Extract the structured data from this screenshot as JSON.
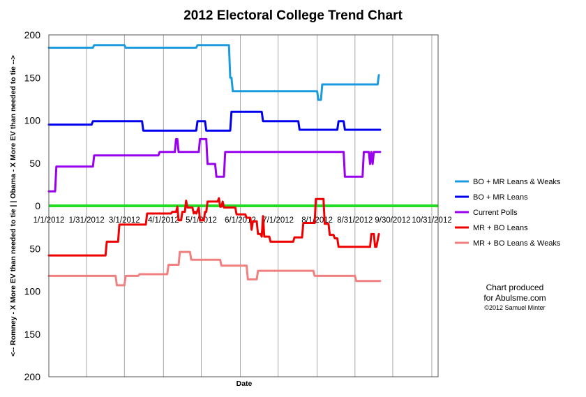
{
  "chart_data": {
    "type": "line",
    "title": "2012 Electoral College Trend Chart",
    "xlabel": "Date",
    "ylabel": "<-- Romney - X More EV than needed to tie | |  Obama - X More EV than needed to tie -->",
    "x_tick_labels": [
      "1/1/2012",
      "1/31/2012",
      "3/1/2012",
      "4/1/2012",
      "5/1/2012",
      "6/1/2012",
      "7/1/2012",
      "8/1/2012",
      "8/31/2012",
      "9/30/2012",
      "10/31/2012"
    ],
    "x_tick_days": [
      0,
      30,
      60,
      91,
      121,
      152,
      182,
      213,
      243,
      273,
      304
    ],
    "x_range_days": [
      0,
      309
    ],
    "y_tick_labels": [
      "200",
      "150",
      "100",
      "50",
      "0",
      "50",
      "100",
      "150",
      "200"
    ],
    "y_tick_values": [
      200,
      150,
      100,
      50,
      0,
      -50,
      -100,
      -150,
      -200
    ],
    "ylim": [
      -200,
      200
    ],
    "grid": "vertical",
    "legend_position": "right",
    "zero_line_color": "#22dd22",
    "series": [
      {
        "name": "BO + MR Leans & Weaks",
        "color": "#1a9be0",
        "points": [
          [
            0,
            185
          ],
          [
            35,
            185
          ],
          [
            36,
            188
          ],
          [
            60,
            188
          ],
          [
            61,
            185
          ],
          [
            117,
            185
          ],
          [
            118,
            188
          ],
          [
            143,
            188
          ],
          [
            144,
            150
          ],
          [
            145,
            150
          ],
          [
            146,
            134
          ],
          [
            213,
            134
          ],
          [
            214,
            124
          ],
          [
            216,
            124
          ],
          [
            217,
            142
          ],
          [
            261,
            142
          ],
          [
            262,
            153
          ]
        ]
      },
      {
        "name": "BO + MR Leans",
        "color": "#0000ee",
        "points": [
          [
            0,
            95
          ],
          [
            34,
            95
          ],
          [
            35,
            99
          ],
          [
            74,
            99
          ],
          [
            75,
            88
          ],
          [
            117,
            88
          ],
          [
            118,
            99
          ],
          [
            124,
            99
          ],
          [
            125,
            88
          ],
          [
            144,
            88
          ],
          [
            145,
            110
          ],
          [
            169,
            110
          ],
          [
            170,
            99
          ],
          [
            198,
            99
          ],
          [
            199,
            89
          ],
          [
            229,
            89
          ],
          [
            230,
            99
          ],
          [
            234,
            99
          ],
          [
            235,
            89
          ],
          [
            263,
            89
          ]
        ]
      },
      {
        "name": "Current Polls",
        "color": "#9900ee",
        "points": [
          [
            0,
            17
          ],
          [
            5,
            17
          ],
          [
            6,
            46
          ],
          [
            35,
            46
          ],
          [
            36,
            59
          ],
          [
            87,
            59
          ],
          [
            88,
            63
          ],
          [
            100,
            63
          ],
          [
            101,
            78
          ],
          [
            102,
            78
          ],
          [
            103,
            63
          ],
          [
            119,
            63
          ],
          [
            120,
            78
          ],
          [
            125,
            78
          ],
          [
            126,
            49
          ],
          [
            132,
            49
          ],
          [
            133,
            34
          ],
          [
            139,
            34
          ],
          [
            140,
            63
          ],
          [
            234,
            63
          ],
          [
            235,
            34
          ],
          [
            249,
            34
          ],
          [
            250,
            63
          ],
          [
            254,
            63
          ],
          [
            255,
            49
          ],
          [
            256,
            63
          ],
          [
            257,
            49
          ],
          [
            258,
            63
          ],
          [
            263,
            63
          ]
        ]
      },
      {
        "name": "MR + BO Leans",
        "color": "#ee0000",
        "points": [
          [
            0,
            -58
          ],
          [
            45,
            -58
          ],
          [
            46,
            -42
          ],
          [
            55,
            -42
          ],
          [
            56,
            -22
          ],
          [
            77,
            -22
          ],
          [
            78,
            -9
          ],
          [
            97,
            -9
          ],
          [
            98,
            -7
          ],
          [
            101,
            -7
          ],
          [
            102,
            -1
          ],
          [
            103,
            -17
          ],
          [
            105,
            -17
          ],
          [
            106,
            -7
          ],
          [
            108,
            -7
          ],
          [
            109,
            6
          ],
          [
            110,
            -2
          ],
          [
            114,
            -2
          ],
          [
            115,
            -9
          ],
          [
            116,
            -7
          ],
          [
            117,
            -9
          ],
          [
            119,
            -2
          ],
          [
            120,
            -17
          ],
          [
            123,
            -17
          ],
          [
            124,
            -7
          ],
          [
            125,
            -7
          ],
          [
            126,
            5
          ],
          [
            134,
            5
          ],
          [
            135,
            9
          ],
          [
            136,
            -1
          ],
          [
            137,
            -1
          ],
          [
            138,
            5
          ],
          [
            139,
            -2
          ],
          [
            148,
            -2
          ],
          [
            149,
            -10
          ],
          [
            156,
            -10
          ],
          [
            157,
            -14
          ],
          [
            160,
            -14
          ],
          [
            161,
            -28
          ],
          [
            162,
            -18
          ],
          [
            165,
            -18
          ],
          [
            166,
            -33
          ],
          [
            168,
            -33
          ],
          [
            169,
            -36
          ],
          [
            170,
            -12
          ],
          [
            171,
            -36
          ],
          [
            175,
            -36
          ],
          [
            176,
            -42
          ],
          [
            194,
            -42
          ],
          [
            195,
            -37
          ],
          [
            201,
            -37
          ],
          [
            202,
            -20
          ],
          [
            211,
            -20
          ],
          [
            212,
            8
          ],
          [
            218,
            8
          ],
          [
            219,
            -21
          ],
          [
            222,
            -21
          ],
          [
            223,
            -34
          ],
          [
            226,
            -34
          ],
          [
            227,
            -38
          ],
          [
            229,
            -38
          ],
          [
            230,
            -48
          ],
          [
            255,
            -48
          ],
          [
            256,
            -33
          ],
          [
            258,
            -33
          ],
          [
            259,
            -48
          ],
          [
            260,
            -48
          ],
          [
            262,
            -33
          ]
        ]
      },
      {
        "name": "MR + BO Leans & Weaks",
        "color": "#f08080",
        "points": [
          [
            0,
            -82
          ],
          [
            53,
            -82
          ],
          [
            54,
            -93
          ],
          [
            60,
            -93
          ],
          [
            61,
            -82
          ],
          [
            71,
            -82
          ],
          [
            72,
            -80
          ],
          [
            94,
            -80
          ],
          [
            95,
            -69
          ],
          [
            103,
            -69
          ],
          [
            104,
            -54
          ],
          [
            112,
            -54
          ],
          [
            113,
            -63
          ],
          [
            136,
            -63
          ],
          [
            137,
            -70
          ],
          [
            157,
            -70
          ],
          [
            158,
            -86
          ],
          [
            165,
            -86
          ],
          [
            166,
            -76
          ],
          [
            210,
            -76
          ],
          [
            211,
            -82
          ],
          [
            243,
            -82
          ],
          [
            244,
            -88
          ],
          [
            263,
            -88
          ]
        ]
      }
    ]
  },
  "credit": {
    "line1": "Chart produced",
    "line2": "for Abulsme.com",
    "line3": "©2012 Samuel Minter"
  }
}
